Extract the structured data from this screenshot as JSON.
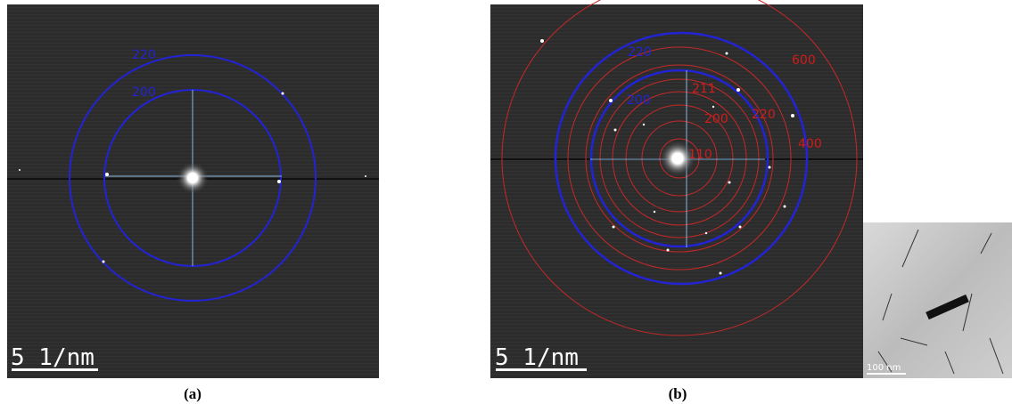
{
  "panels": [
    {
      "caption": "(a)",
      "scale_bar": "5 1/nm",
      "ring_labels": [
        {
          "text": "220",
          "color": "blue"
        },
        {
          "text": "200",
          "color": "blue"
        }
      ]
    },
    {
      "caption": "(b)",
      "scale_bar": "5 1/nm",
      "ring_labels": [
        {
          "text": "220",
          "color": "blue"
        },
        {
          "text": "200",
          "color": "blue"
        },
        {
          "text": "600",
          "color": "red"
        },
        {
          "text": "211",
          "color": "red"
        },
        {
          "text": "200",
          "color": "red"
        },
        {
          "text": "220",
          "color": "red"
        },
        {
          "text": "400",
          "color": "red"
        },
        {
          "text": "110",
          "color": "red"
        }
      ],
      "inset": {
        "scale_bar": "100 nm"
      }
    }
  ]
}
